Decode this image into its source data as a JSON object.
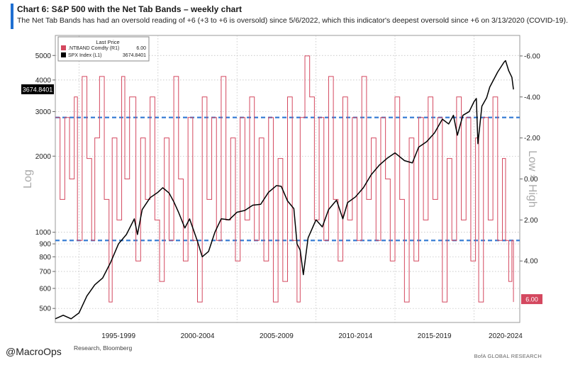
{
  "title": "Chart 6: S&P 500 with the Net Tab Bands  – weekly chart",
  "subtitle": "The Net Tab Bands has had an oversold reading of +6 (+3 to +6 is oversold) since 5/6/2022, which this indicator's deepest oversold since +6 on 3/13/2020 (COVID-19).",
  "source": "Research, Bloomberg",
  "handle": "@MacroOps",
  "credit": "BofA GLOBAL RESEARCH",
  "colors": {
    "spx": "#000000",
    "ntband": "#d4485f",
    "bands": "#3a7fd5",
    "grid": "#b8b8b8",
    "axis": "#666666"
  },
  "chart_data": {
    "type": "line",
    "title": "S&P 500 with the Net Tab Bands - weekly chart",
    "legend": {
      "header": "Last Price",
      "entries": [
        {
          "label": ".NTBAND Comdty  (R1)",
          "value": "6.00",
          "color": "#d4485f"
        },
        {
          "label": "SPX Index  (L1)",
          "value": "3674.8401",
          "color": "#000000"
        }
      ]
    },
    "x_range": [
      1993.5,
      2022.9
    ],
    "x_tick_labels": [
      {
        "label": "1995-1999",
        "x": 1997.5
      },
      {
        "label": "2000-2004",
        "x": 2002.5
      },
      {
        "label": "2005-2009",
        "x": 2007.5
      },
      {
        "label": "2010-2014",
        "x": 2012.5
      },
      {
        "label": "2015-2019",
        "x": 2017.5
      },
      {
        "label": "2020-2024",
        "x": 2022.0
      }
    ],
    "x_gridlines": [
      1995,
      2000,
      2005,
      2010,
      2015,
      2020
    ],
    "left_axis": {
      "label": "Log",
      "scale": "log",
      "range": [
        440,
        6000
      ],
      "ticks": [
        500,
        600,
        700,
        800,
        900,
        1000,
        2000,
        3000,
        4000,
        5000
      ],
      "tick_labels": [
        "500",
        "600",
        "700",
        "800",
        "900",
        "1000",
        "2000",
        "3000",
        "4000",
        "5000"
      ],
      "current_value_label": "3674.8401",
      "current_value": 3674.84
    },
    "right_axis": {
      "label": "Low = High",
      "range_top": -7.0,
      "range_bottom": 7.0,
      "ticks": [
        -6,
        -4,
        -2,
        0,
        2,
        4
      ],
      "tick_labels": [
        "-6.00",
        "-4.00",
        "-2.00",
        "0.00",
        "2.00",
        "4.00"
      ],
      "current_value_label": "6.00",
      "current_value": 6.0
    },
    "band_levels_right_axis": [
      -3,
      3
    ],
    "series": [
      {
        "name": "SPX Index (L1)",
        "axis": "left",
        "points": [
          [
            1993.5,
            455
          ],
          [
            1994.0,
            470
          ],
          [
            1994.5,
            455
          ],
          [
            1995.0,
            480
          ],
          [
            1995.5,
            560
          ],
          [
            1996.0,
            620
          ],
          [
            1996.5,
            660
          ],
          [
            1997.0,
            760
          ],
          [
            1997.5,
            900
          ],
          [
            1998.0,
            980
          ],
          [
            1998.5,
            1130
          ],
          [
            1998.7,
            980
          ],
          [
            1999.0,
            1230
          ],
          [
            1999.5,
            1370
          ],
          [
            2000.0,
            1440
          ],
          [
            2000.3,
            1500
          ],
          [
            2000.7,
            1430
          ],
          [
            2001.0,
            1320
          ],
          [
            2001.3,
            1200
          ],
          [
            2001.7,
            1040
          ],
          [
            2002.0,
            1130
          ],
          [
            2002.5,
            920
          ],
          [
            2002.8,
            800
          ],
          [
            2003.2,
            840
          ],
          [
            2003.6,
            1000
          ],
          [
            2004.0,
            1130
          ],
          [
            2004.5,
            1120
          ],
          [
            2005.0,
            1200
          ],
          [
            2005.5,
            1220
          ],
          [
            2006.0,
            1280
          ],
          [
            2006.5,
            1290
          ],
          [
            2007.0,
            1440
          ],
          [
            2007.5,
            1530
          ],
          [
            2007.8,
            1520
          ],
          [
            2008.2,
            1330
          ],
          [
            2008.6,
            1240
          ],
          [
            2008.8,
            900
          ],
          [
            2009.0,
            850
          ],
          [
            2009.2,
            680
          ],
          [
            2009.5,
            950
          ],
          [
            2010.0,
            1120
          ],
          [
            2010.4,
            1050
          ],
          [
            2010.8,
            1230
          ],
          [
            2011.3,
            1340
          ],
          [
            2011.7,
            1130
          ],
          [
            2012.0,
            1310
          ],
          [
            2012.5,
            1380
          ],
          [
            2013.0,
            1500
          ],
          [
            2013.5,
            1690
          ],
          [
            2014.0,
            1840
          ],
          [
            2014.5,
            1960
          ],
          [
            2015.0,
            2060
          ],
          [
            2015.6,
            1920
          ],
          [
            2016.1,
            1880
          ],
          [
            2016.5,
            2170
          ],
          [
            2017.0,
            2280
          ],
          [
            2017.5,
            2470
          ],
          [
            2018.0,
            2800
          ],
          [
            2018.4,
            2680
          ],
          [
            2018.7,
            2900
          ],
          [
            2018.95,
            2420
          ],
          [
            2019.3,
            2900
          ],
          [
            2019.7,
            3000
          ],
          [
            2020.0,
            3280
          ],
          [
            2020.15,
            3380
          ],
          [
            2020.25,
            2240
          ],
          [
            2020.5,
            3150
          ],
          [
            2020.8,
            3400
          ],
          [
            2021.0,
            3750
          ],
          [
            2021.5,
            4300
          ],
          [
            2021.9,
            4700
          ],
          [
            2022.0,
            4770
          ],
          [
            2022.2,
            4350
          ],
          [
            2022.4,
            4100
          ],
          [
            2022.5,
            3670
          ]
        ]
      },
      {
        "name": ".NTBAND Comdty (R1)",
        "axis": "right",
        "points": [
          [
            1993.5,
            -3
          ],
          [
            1993.8,
            1
          ],
          [
            1994.1,
            -3
          ],
          [
            1994.4,
            0
          ],
          [
            1994.7,
            -4
          ],
          [
            1994.9,
            3
          ],
          [
            1995.2,
            -5
          ],
          [
            1995.5,
            -1
          ],
          [
            1995.8,
            3
          ],
          [
            1996.0,
            -2
          ],
          [
            1996.3,
            -5
          ],
          [
            1996.6,
            1
          ],
          [
            1996.9,
            6
          ],
          [
            1997.1,
            -2
          ],
          [
            1997.4,
            2
          ],
          [
            1997.7,
            -5
          ],
          [
            1997.9,
            0
          ],
          [
            1998.2,
            -4
          ],
          [
            1998.6,
            4
          ],
          [
            1998.9,
            -2
          ],
          [
            1999.2,
            1
          ],
          [
            1999.5,
            -4
          ],
          [
            1999.8,
            2
          ],
          [
            2000.1,
            5
          ],
          [
            2000.4,
            -2
          ],
          [
            2000.7,
            3
          ],
          [
            2001.0,
            -5
          ],
          [
            2001.3,
            0
          ],
          [
            2001.6,
            4
          ],
          [
            2001.9,
            -3
          ],
          [
            2002.2,
            3
          ],
          [
            2002.5,
            6
          ],
          [
            2002.8,
            -4
          ],
          [
            2003.1,
            1
          ],
          [
            2003.4,
            -3
          ],
          [
            2003.7,
            3
          ],
          [
            2004.0,
            -5
          ],
          [
            2004.3,
            2
          ],
          [
            2004.6,
            -2
          ],
          [
            2004.9,
            4
          ],
          [
            2005.2,
            -3
          ],
          [
            2005.5,
            2
          ],
          [
            2005.8,
            -4
          ],
          [
            2006.1,
            3
          ],
          [
            2006.4,
            -2
          ],
          [
            2006.7,
            4
          ],
          [
            2007.0,
            -3
          ],
          [
            2007.3,
            6
          ],
          [
            2007.6,
            -1
          ],
          [
            2007.9,
            5
          ],
          [
            2008.2,
            -4
          ],
          [
            2008.5,
            3
          ],
          [
            2008.8,
            6
          ],
          [
            2009.0,
            -3
          ],
          [
            2009.3,
            -6
          ],
          [
            2009.6,
            -4
          ],
          [
            2009.9,
            2
          ],
          [
            2010.2,
            -3
          ],
          [
            2010.5,
            3
          ],
          [
            2010.8,
            -5
          ],
          [
            2011.1,
            1
          ],
          [
            2011.4,
            4
          ],
          [
            2011.7,
            -4
          ],
          [
            2012.0,
            2
          ],
          [
            2012.3,
            -3
          ],
          [
            2012.6,
            3
          ],
          [
            2012.9,
            -5
          ],
          [
            2013.2,
            1
          ],
          [
            2013.5,
            -2
          ],
          [
            2013.8,
            3
          ],
          [
            2014.1,
            -3
          ],
          [
            2014.4,
            0
          ],
          [
            2014.7,
            4
          ],
          [
            2015.0,
            -4
          ],
          [
            2015.3,
            1
          ],
          [
            2015.6,
            6
          ],
          [
            2015.9,
            -2
          ],
          [
            2016.2,
            4
          ],
          [
            2016.5,
            -3
          ],
          [
            2016.8,
            2
          ],
          [
            2017.1,
            -4
          ],
          [
            2017.4,
            1
          ],
          [
            2017.7,
            -3
          ],
          [
            2018.0,
            6
          ],
          [
            2018.3,
            -1
          ],
          [
            2018.6,
            3
          ],
          [
            2018.9,
            -4
          ],
          [
            2019.2,
            2
          ],
          [
            2019.5,
            -3
          ],
          [
            2019.8,
            4
          ],
          [
            2020.1,
            -2
          ],
          [
            2020.3,
            6
          ],
          [
            2020.6,
            -3
          ],
          [
            2020.9,
            2
          ],
          [
            2021.2,
            -4
          ],
          [
            2021.5,
            3
          ],
          [
            2021.8,
            -1
          ],
          [
            2022.0,
            3
          ],
          [
            2022.2,
            5
          ],
          [
            2022.4,
            3
          ],
          [
            2022.5,
            6
          ]
        ]
      }
    ]
  }
}
